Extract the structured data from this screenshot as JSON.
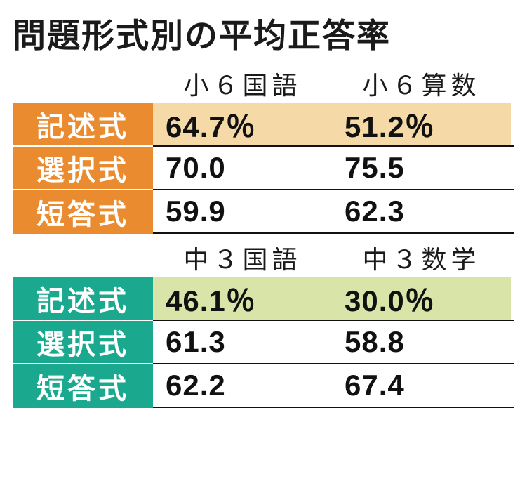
{
  "title": "問題形式別の平均正答率",
  "tables": [
    {
      "theme": "orange",
      "highlight_class": "highlight-orange",
      "columns": [
        "小６国語",
        "小６算数"
      ],
      "rows": [
        {
          "label": "記述式",
          "values": [
            "64.7％",
            "51.2％"
          ],
          "highlight": true
        },
        {
          "label": "選択式",
          "values": [
            "70.0",
            "75.5"
          ],
          "highlight": false
        },
        {
          "label": "短答式",
          "values": [
            "59.9",
            "62.3"
          ],
          "highlight": false
        }
      ]
    },
    {
      "theme": "teal",
      "highlight_class": "highlight-green",
      "columns": [
        "中３国語",
        "中３数学"
      ],
      "rows": [
        {
          "label": "記述式",
          "values": [
            "46.1％",
            "30.0％"
          ],
          "highlight": true
        },
        {
          "label": "選択式",
          "values": [
            "61.3",
            "58.8"
          ],
          "highlight": false
        },
        {
          "label": "短答式",
          "values": [
            "62.2",
            "67.4"
          ],
          "highlight": false
        }
      ]
    }
  ]
}
